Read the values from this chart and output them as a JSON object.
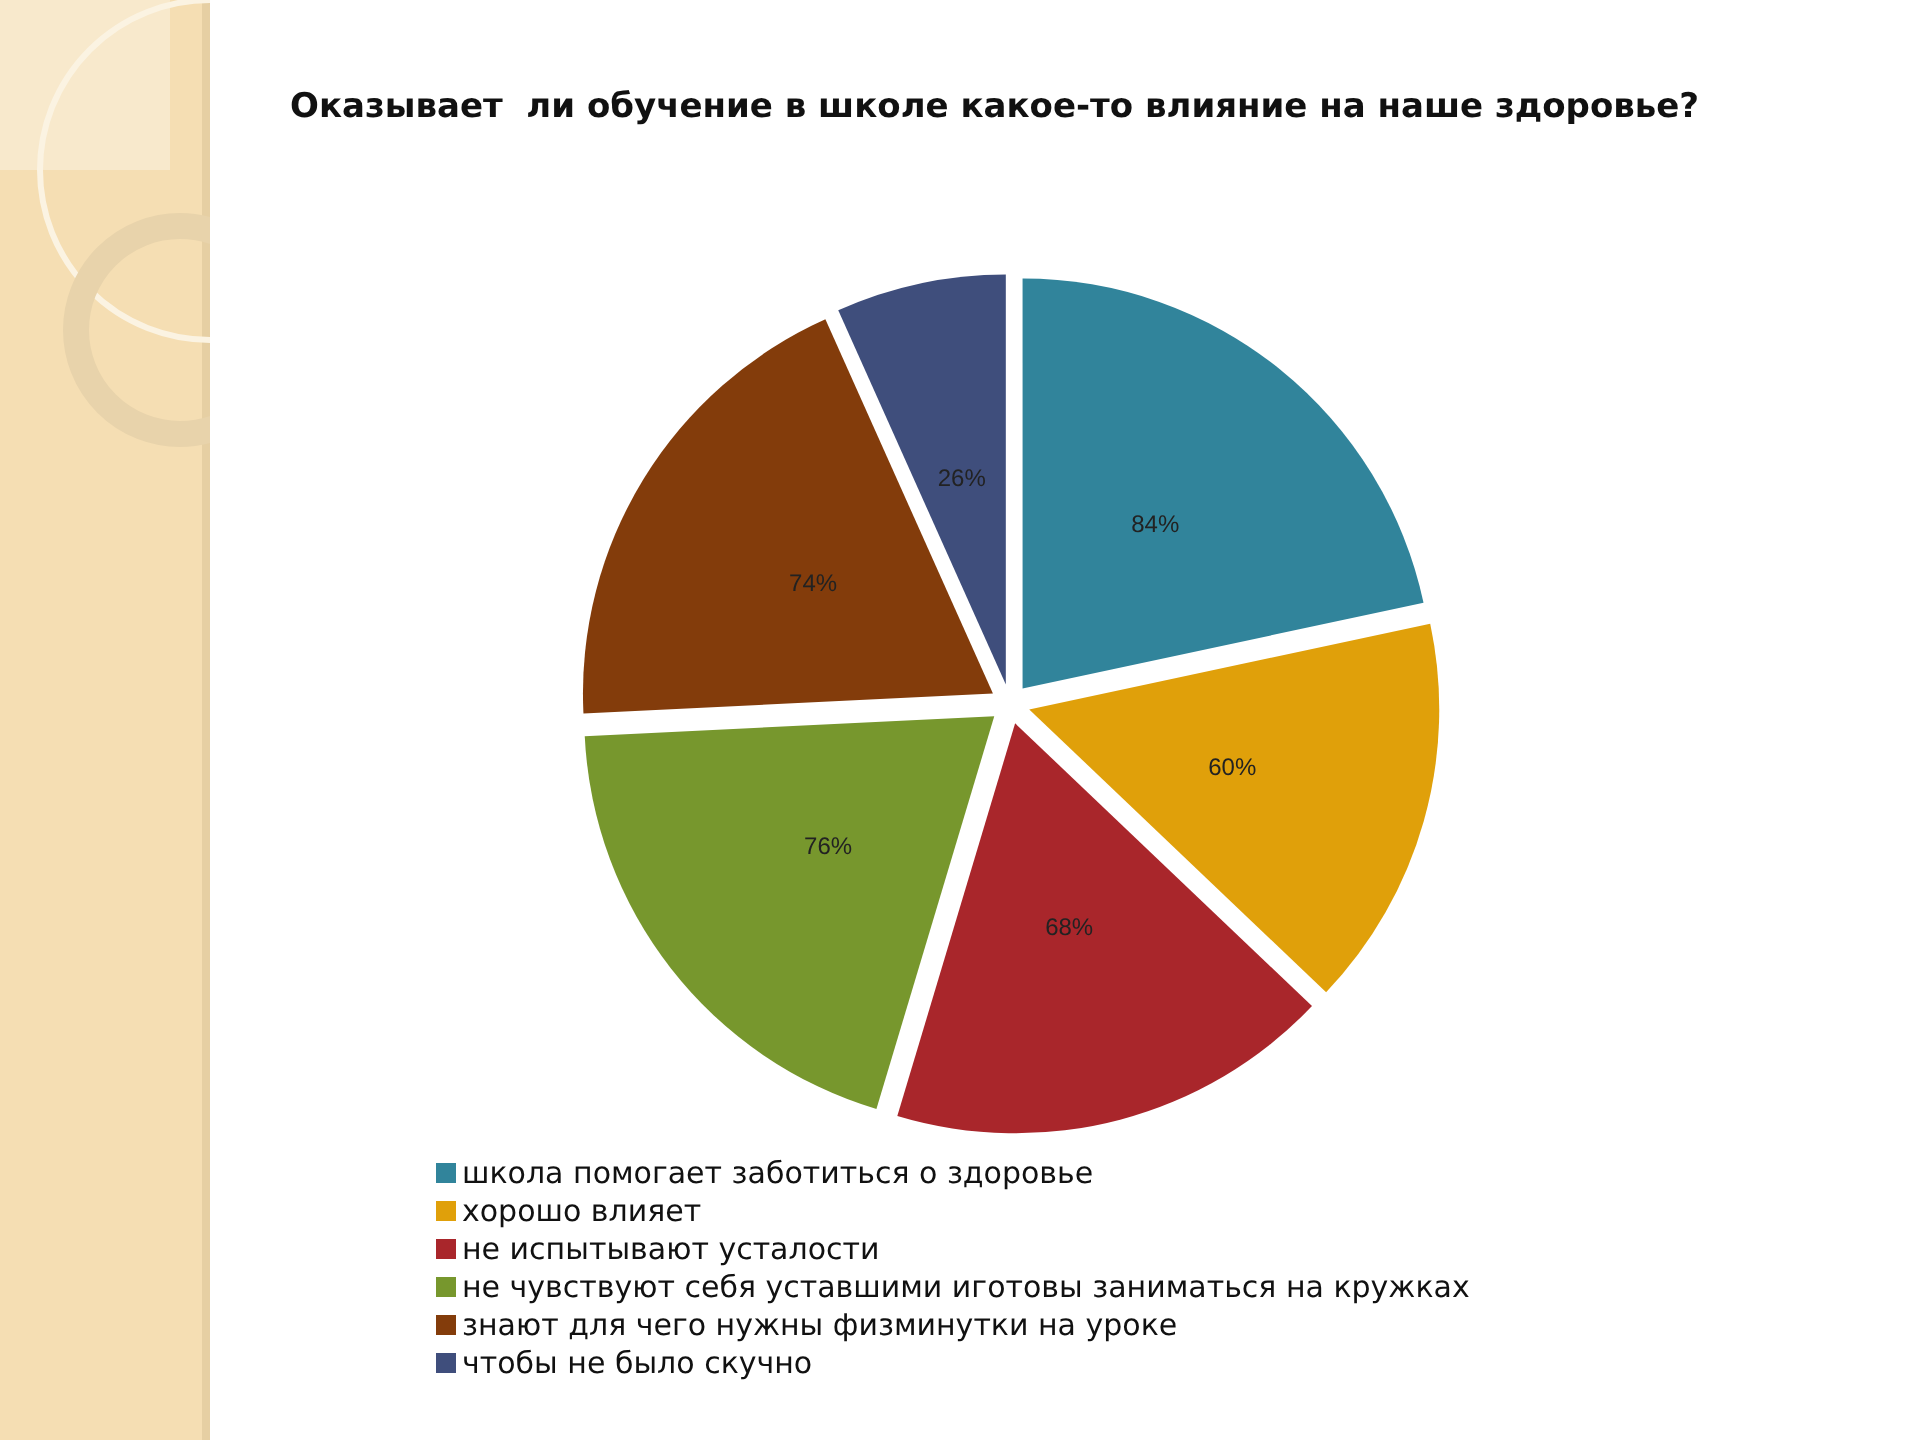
{
  "chart_data": {
    "type": "pie",
    "title": "Оказывает  ли обучение в школе какое-то влияние на наше здоровье?",
    "categories": [
      "школа помогает заботиться о здоровье",
      "хорошо влияет",
      "не испытывают усталости",
      "не чувствуют себя уставшими иготовы заниматься на кружках",
      "знают для чего нужны физминутки на уроке",
      "чтобы не было скучно"
    ],
    "values": [
      84,
      60,
      68,
      76,
      74,
      26
    ],
    "value_labels": [
      "84%",
      "60%",
      "68%",
      "76%",
      "74%",
      "26%"
    ],
    "colors": [
      "#31849b",
      "#e0a00a",
      "#a9262b",
      "#77972d",
      "#833c0b",
      "#3f4e7c"
    ],
    "legend": "bottom"
  }
}
